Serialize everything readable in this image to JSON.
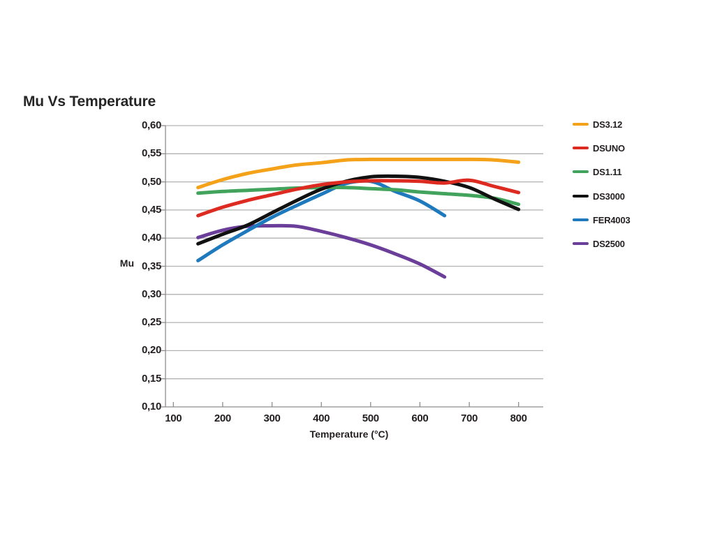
{
  "title": "Mu Vs Temperature",
  "colors": {
    "grid": "#b2b2b2",
    "axis": "#8d8d8d",
    "text": "#231f20"
  },
  "chart_data": {
    "type": "line",
    "title": "Mu Vs Temperature",
    "xlabel": "Temperature (°C)",
    "ylabel": "Mu",
    "x_range": [
      84,
      850
    ],
    "y_range": [
      0.1,
      0.6
    ],
    "x_ticks": [
      100,
      200,
      300,
      400,
      500,
      600,
      700,
      800
    ],
    "x_tick_labels": [
      "100",
      "200",
      "300",
      "400",
      "500",
      "600",
      "700",
      "800"
    ],
    "y_ticks": [
      0.6,
      0.55,
      0.5,
      0.45,
      0.4,
      0.35,
      0.3,
      0.25,
      0.2,
      0.15,
      0.1
    ],
    "y_tick_labels": [
      "0,60",
      "0,55",
      "0,50",
      "0,45",
      "0,40",
      "0,35",
      "0,30",
      "0,25",
      "0,20",
      "0,15",
      "0,10"
    ],
    "grid": "horizontal",
    "legend_position": "right",
    "series": [
      {
        "name": "DS3.12",
        "color": "#f5a21b",
        "x": [
          150,
          200,
          250,
          300,
          350,
          400,
          450,
          500,
          550,
          600,
          650,
          700,
          750,
          800
        ],
        "y": [
          0.49,
          0.504,
          0.515,
          0.523,
          0.53,
          0.534,
          0.539,
          0.54,
          0.54,
          0.54,
          0.54,
          0.54,
          0.539,
          0.535
        ]
      },
      {
        "name": "DSUNO",
        "color": "#de2b22",
        "x": [
          150,
          200,
          250,
          300,
          350,
          400,
          450,
          500,
          550,
          600,
          650,
          700,
          750,
          800
        ],
        "y": [
          0.44,
          0.455,
          0.467,
          0.477,
          0.487,
          0.495,
          0.5,
          0.502,
          0.502,
          0.501,
          0.498,
          0.503,
          0.492,
          0.481
        ]
      },
      {
        "name": "DS1.11",
        "color": "#42a45c",
        "x": [
          150,
          200,
          250,
          300,
          350,
          400,
          450,
          500,
          550,
          600,
          650,
          700,
          750,
          800
        ],
        "y": [
          0.48,
          0.483,
          0.485,
          0.487,
          0.489,
          0.49,
          0.49,
          0.488,
          0.486,
          0.482,
          0.479,
          0.476,
          0.471,
          0.46
        ]
      },
      {
        "name": "DS3000",
        "color": "#111111",
        "x": [
          150,
          200,
          250,
          300,
          350,
          400,
          450,
          500,
          550,
          600,
          650,
          700,
          750,
          800
        ],
        "y": [
          0.39,
          0.407,
          0.423,
          0.445,
          0.467,
          0.487,
          0.501,
          0.509,
          0.51,
          0.508,
          0.501,
          0.49,
          0.47,
          0.451
        ]
      },
      {
        "name": "FER4003",
        "color": "#1e79bd",
        "x": [
          150,
          200,
          250,
          300,
          350,
          400,
          450,
          500,
          550,
          600,
          650
        ],
        "y": [
          0.36,
          0.388,
          0.413,
          0.437,
          0.458,
          0.478,
          0.497,
          0.501,
          0.483,
          0.466,
          0.44
        ]
      },
      {
        "name": "DS2500",
        "color": "#6a3e99",
        "x": [
          150,
          200,
          250,
          300,
          350,
          400,
          450,
          500,
          550,
          600,
          650
        ],
        "y": [
          0.401,
          0.414,
          0.421,
          0.422,
          0.421,
          0.412,
          0.401,
          0.388,
          0.372,
          0.354,
          0.331
        ]
      }
    ],
    "z_order": [
      5,
      4,
      2,
      3,
      1,
      0
    ]
  }
}
